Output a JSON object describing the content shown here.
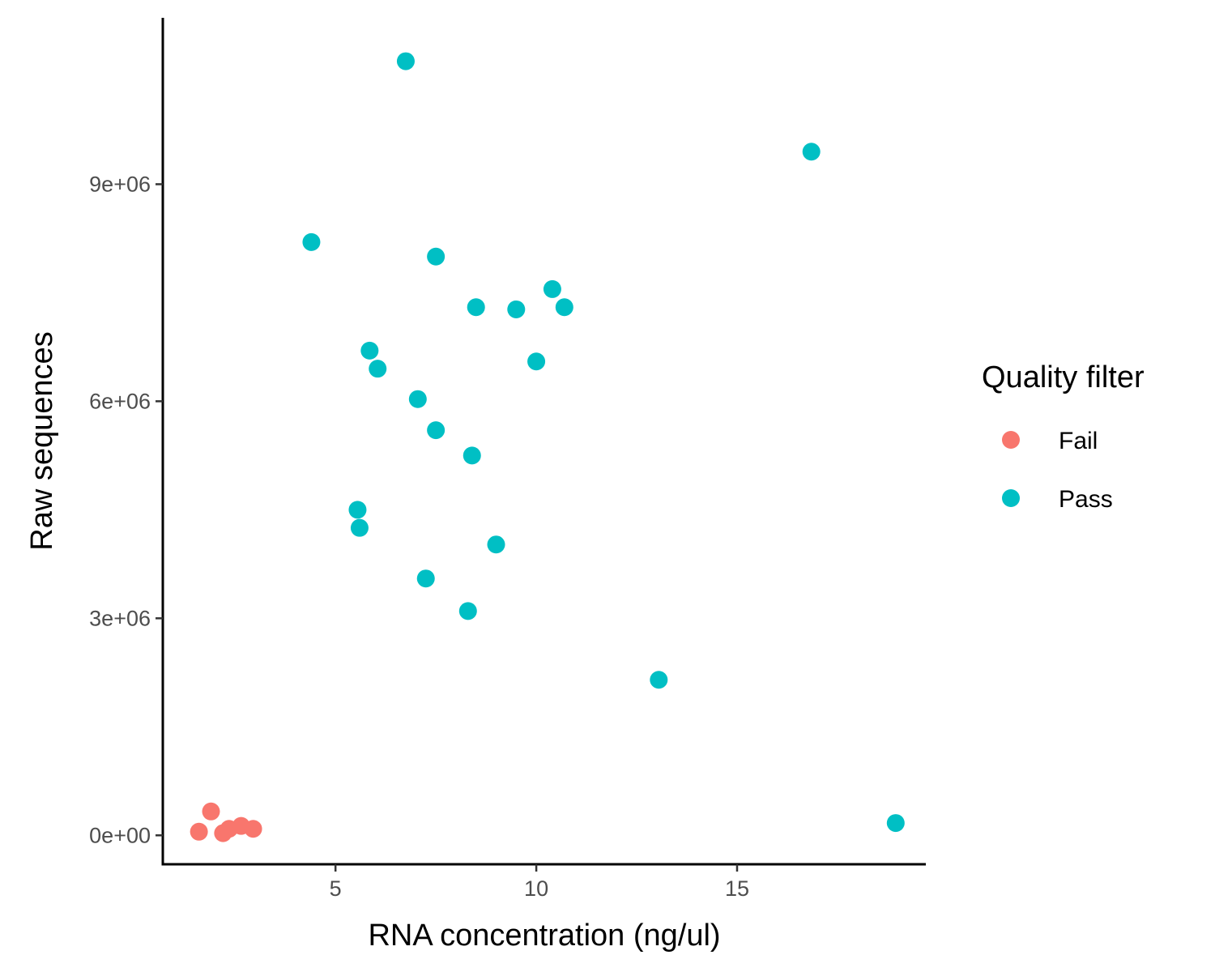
{
  "chart_data": {
    "type": "scatter",
    "title": "",
    "xlabel": "RNA concentration (ng/ul)",
    "ylabel": "Raw sequences",
    "xlim": [
      0.7,
      19.7
    ],
    "ylim": [
      -400000,
      11300000
    ],
    "x_ticks": [
      5,
      10,
      15
    ],
    "x_tick_labels": [
      "5",
      "10",
      "15"
    ],
    "y_ticks": [
      0,
      3000000,
      6000000,
      9000000
    ],
    "y_tick_labels": [
      "0e+00",
      "3e+06",
      "6e+06",
      "9e+06"
    ],
    "grid": false,
    "legend": {
      "title": "Quality filter",
      "placement": "right"
    },
    "series": [
      {
        "name": "Fail",
        "color": "#F8766D",
        "points": [
          {
            "x": 1.6,
            "y": 50000
          },
          {
            "x": 1.9,
            "y": 330000
          },
          {
            "x": 2.2,
            "y": 30000
          },
          {
            "x": 2.35,
            "y": 90000
          },
          {
            "x": 2.65,
            "y": 130000
          },
          {
            "x": 2.95,
            "y": 90000
          }
        ]
      },
      {
        "name": "Pass",
        "color": "#00BFC4",
        "points": [
          {
            "x": 6.75,
            "y": 10700000
          },
          {
            "x": 16.85,
            "y": 9450000
          },
          {
            "x": 4.4,
            "y": 8200000
          },
          {
            "x": 7.5,
            "y": 8000000
          },
          {
            "x": 10.4,
            "y": 7550000
          },
          {
            "x": 8.5,
            "y": 7300000
          },
          {
            "x": 9.5,
            "y": 7270000
          },
          {
            "x": 10.7,
            "y": 7300000
          },
          {
            "x": 5.85,
            "y": 6700000
          },
          {
            "x": 6.05,
            "y": 6450000
          },
          {
            "x": 10.0,
            "y": 6550000
          },
          {
            "x": 7.05,
            "y": 6030000
          },
          {
            "x": 7.5,
            "y": 5600000
          },
          {
            "x": 8.4,
            "y": 5250000
          },
          {
            "x": 5.55,
            "y": 4500000
          },
          {
            "x": 5.6,
            "y": 4250000
          },
          {
            "x": 9.0,
            "y": 4020000
          },
          {
            "x": 7.25,
            "y": 3550000
          },
          {
            "x": 8.3,
            "y": 3100000
          },
          {
            "x": 13.05,
            "y": 2150000
          },
          {
            "x": 18.95,
            "y": 170000
          }
        ]
      }
    ]
  }
}
